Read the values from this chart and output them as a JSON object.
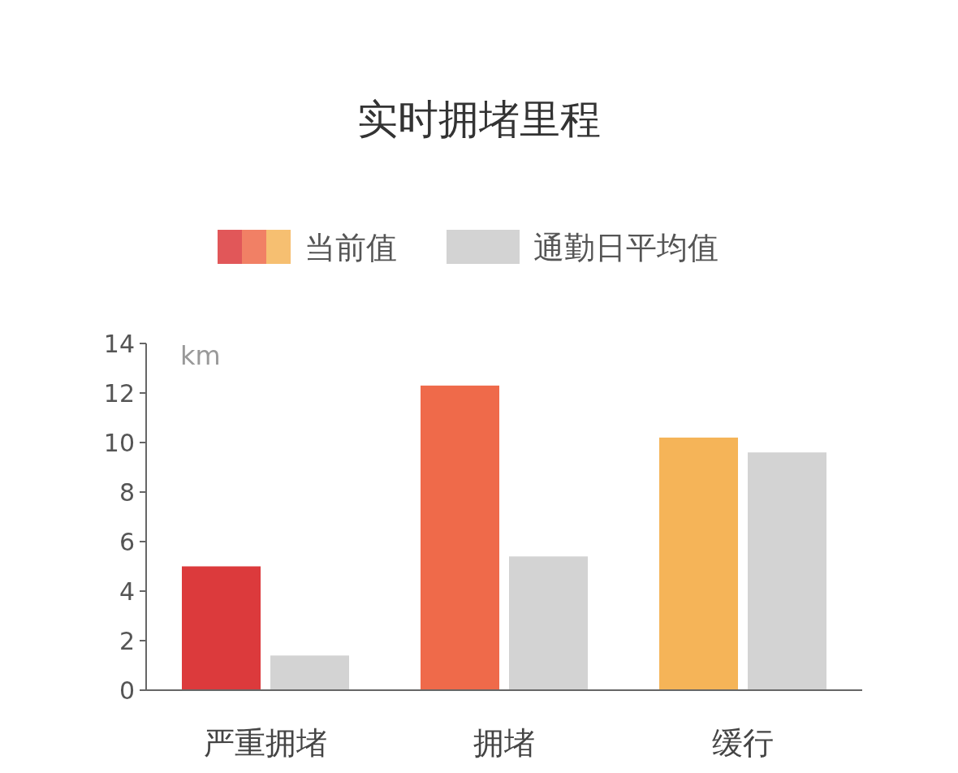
{
  "chart_data": {
    "type": "bar",
    "title": "实时拥堵里程",
    "ylabel": "km",
    "categories": [
      "严重拥堵",
      "拥堵",
      "缓行"
    ],
    "series": [
      {
        "name": "当前值",
        "colors": [
          "#dc3a3c",
          "#ef6a4a",
          "#f5b458"
        ],
        "values": [
          5.0,
          12.3,
          10.2
        ]
      },
      {
        "name": "通勤日平均值",
        "color": "#d3d3d3",
        "values": [
          1.4,
          5.4,
          9.6
        ]
      }
    ],
    "ylim": [
      0,
      14
    ],
    "yticks": [
      0,
      2,
      4,
      6,
      8,
      10,
      12,
      14
    ],
    "grid": false,
    "legend": "top"
  }
}
